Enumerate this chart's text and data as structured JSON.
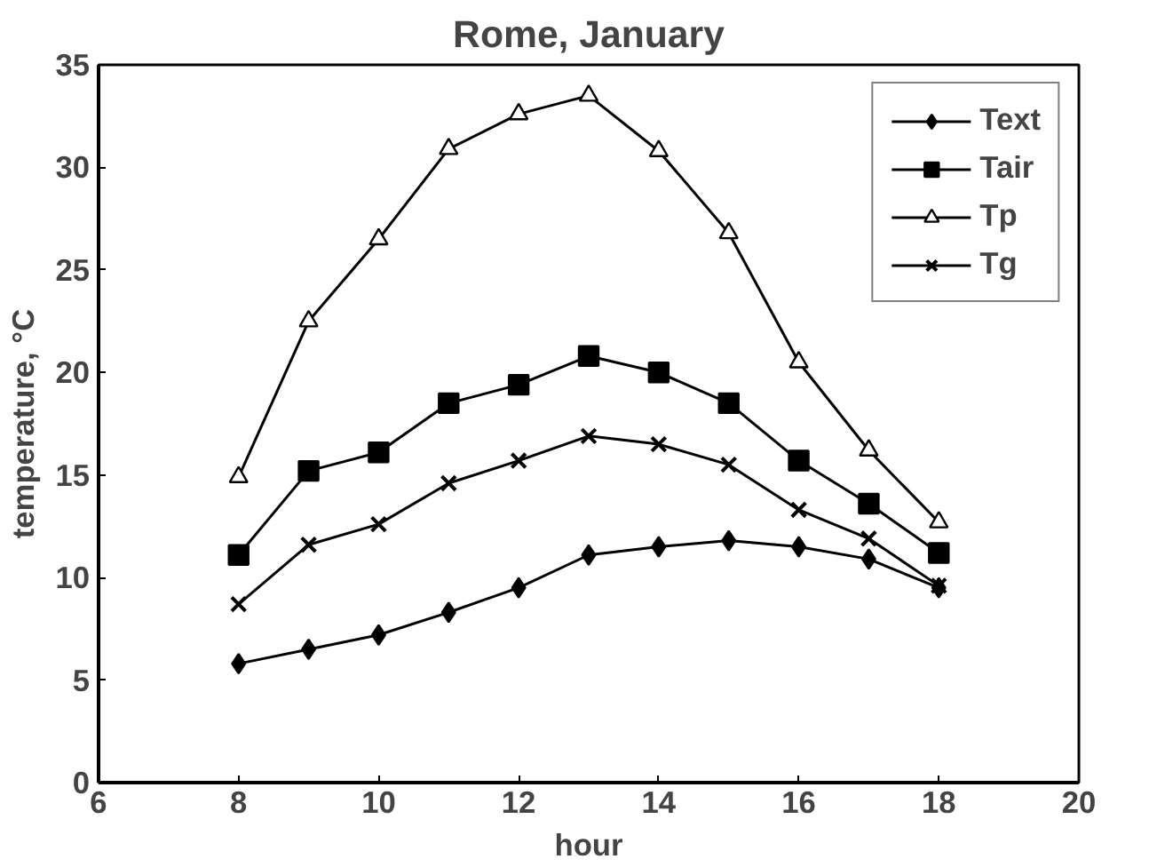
{
  "chart_data": {
    "type": "line",
    "title": "Rome, January",
    "xlabel": "hour",
    "ylabel": "temperature, °C",
    "x": [
      8,
      9,
      10,
      11,
      12,
      13,
      14,
      15,
      16,
      17,
      18
    ],
    "series": [
      {
        "name": "Text",
        "color": "#000000",
        "marker": "diamond",
        "values": [
          5.8,
          6.5,
          7.2,
          8.3,
          9.5,
          11.1,
          11.5,
          11.8,
          11.5,
          10.9,
          9.5
        ]
      },
      {
        "name": "Tair",
        "color": "#000000",
        "marker": "square",
        "values": [
          11.1,
          15.2,
          16.1,
          18.5,
          19.4,
          20.8,
          20.0,
          18.5,
          15.7,
          13.6,
          11.2
        ]
      },
      {
        "name": "Tp",
        "color": "#000000",
        "marker": "triangle",
        "values": [
          14.9,
          22.5,
          26.5,
          30.9,
          32.6,
          33.5,
          30.8,
          26.8,
          20.5,
          16.2,
          12.7
        ]
      },
      {
        "name": "Tg",
        "color": "#000000",
        "marker": "cross",
        "values": [
          8.7,
          11.6,
          12.6,
          14.6,
          15.7,
          16.9,
          16.5,
          15.5,
          13.3,
          11.9,
          9.6
        ]
      }
    ],
    "xlim": [
      6,
      20
    ],
    "xticks": [
      6,
      8,
      10,
      12,
      14,
      16,
      18,
      20
    ],
    "ylim": [
      0,
      35
    ],
    "yticks": [
      0,
      5,
      10,
      15,
      20,
      25,
      30,
      35
    ],
    "grid": false,
    "legend": "top right",
    "line_style": "solid"
  }
}
